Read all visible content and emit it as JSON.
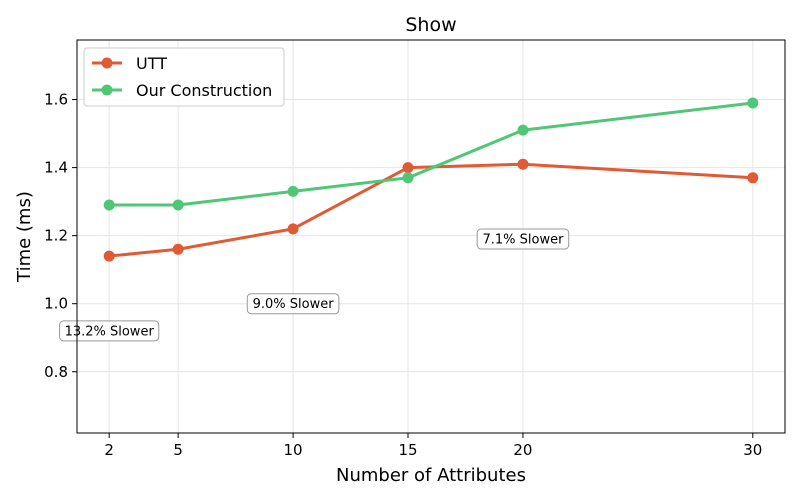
{
  "chart_data": {
    "type": "line",
    "title": "Show",
    "xlabel": "Number of Attributes",
    "ylabel": "Time (ms)",
    "x": [
      2,
      5,
      10,
      15,
      20,
      30
    ],
    "xlim": [
      0.6,
      31.4
    ],
    "ylim": [
      0.62,
      1.775
    ],
    "yticks": [
      0.8,
      1.0,
      1.2,
      1.4,
      1.6
    ],
    "ytick_labels": [
      "0.8",
      "1.0",
      "1.2",
      "1.4",
      "1.6"
    ],
    "xtick_labels": [
      "2",
      "5",
      "10",
      "15",
      "20",
      "30"
    ],
    "grid": true,
    "legend_position": "top-left",
    "series": [
      {
        "name": "UTT",
        "color": "#e05a33",
        "values": [
          1.14,
          1.16,
          1.22,
          1.4,
          1.41,
          1.37
        ]
      },
      {
        "name": "Our Construction",
        "color": "#4fc776",
        "values": [
          1.29,
          1.29,
          1.33,
          1.37,
          1.51,
          1.59
        ]
      }
    ],
    "annotations": [
      {
        "text": "13.2% Slower",
        "x": 2,
        "y": 0.92
      },
      {
        "text": "9.0% Slower",
        "x": 10,
        "y": 1.0
      },
      {
        "text": "7.1% Slower",
        "x": 20,
        "y": 1.19
      }
    ]
  }
}
